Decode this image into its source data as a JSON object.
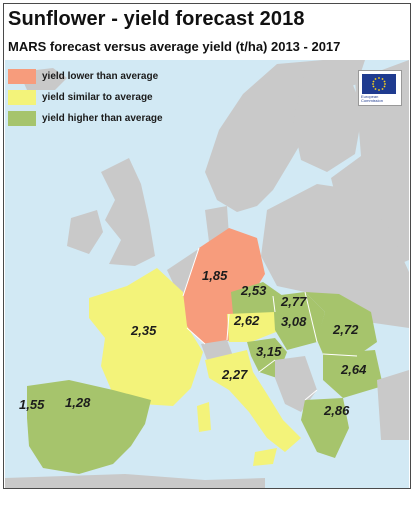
{
  "header": {
    "title": "Sunflower - yield forecast 2018",
    "subtitle": "MARS forecast versus average yield (t/ha) 2013 - 2017"
  },
  "legend": [
    {
      "label": "yield lower than average",
      "color": "#f79c7c"
    },
    {
      "label": "yield similar to average",
      "color": "#f3f37a"
    },
    {
      "label": "yield higher than average",
      "color": "#a6c46c"
    }
  ],
  "logo": {
    "text": "European Commission"
  },
  "map_colors": {
    "sea": "#d2e9f4",
    "land_neutral": "#c9c9c9",
    "lower": "#f79c7c",
    "similar": "#f3f37a",
    "higher": "#a6c46c"
  },
  "yields": [
    {
      "value": "1,85"
    },
    {
      "value": "2,53"
    },
    {
      "value": "2,77"
    },
    {
      "value": "2,35"
    },
    {
      "value": "2,62"
    },
    {
      "value": "3,08"
    },
    {
      "value": "2,72"
    },
    {
      "value": "3,15"
    },
    {
      "value": "2,64"
    },
    {
      "value": "2,27"
    },
    {
      "value": "1,55"
    },
    {
      "value": "1,28"
    },
    {
      "value": "2,86"
    }
  ]
}
